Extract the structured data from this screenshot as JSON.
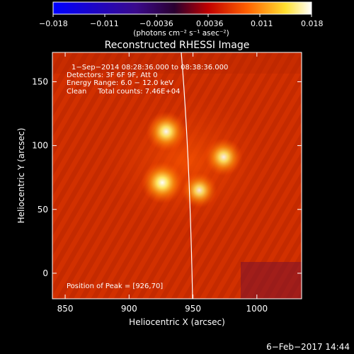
{
  "colorbar": {
    "tick_labels": [
      "−0.018",
      "−0.011",
      "−0.0036",
      "0.0036",
      "0.011",
      "0.018"
    ],
    "units_label": "(photons cm⁻² s⁻¹ asec⁻²)",
    "colormap": [
      "#0000ff",
      "#3a0a8c",
      "#2a0030",
      "#c00000",
      "#ff6000",
      "#ffe030",
      "#ffffff"
    ]
  },
  "image": {
    "title": "Reconstructed RHESSI Image",
    "info_lines": [
      "1−Sep−2014 08:28:36.000 to 08:38:36.000",
      "Detectors: 3F 6F 9F, Att 0",
      "Energy Range: 6.0 − 12.0 keV",
      "Clean     Total counts: 7.46E+04"
    ],
    "peak_label": "Position of Peak = [926,70]",
    "background_color": "#d23000",
    "sources": [
      {
        "x": 926,
        "y": 71,
        "intensity": 1.0
      },
      {
        "x": 929,
        "y": 111,
        "intensity": 0.9
      },
      {
        "x": 974,
        "y": 91,
        "intensity": 0.8
      },
      {
        "x": 955,
        "y": 65,
        "intensity": 0.7
      }
    ]
  },
  "axes": {
    "xlabel": "Heliocentric X (arcsec)",
    "ylabel": "Heliocentric Y (arcsec)",
    "xlim": [
      840,
      1035
    ],
    "ylim": [
      -20,
      173
    ],
    "xticks": [
      "850",
      "900",
      "950",
      "1000"
    ],
    "yticks": [
      "0",
      "50",
      "100",
      "150"
    ]
  },
  "footer": {
    "timestamp": "6−Feb−2017 14:44"
  }
}
